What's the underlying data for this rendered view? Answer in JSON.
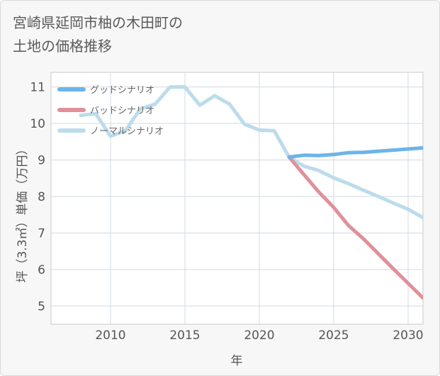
{
  "chart_data": {
    "type": "line",
    "title_lines": [
      "宮崎県延岡市柚の木田町の",
      "土地の価格推移"
    ],
    "xlabel": "年",
    "ylabel": "坪（3.3㎡）単価（万円）",
    "xlim": [
      2006,
      2031
    ],
    "ylim": [
      4.5,
      11.4
    ],
    "xticks": [
      2010,
      2015,
      2020,
      2025,
      2030
    ],
    "yticks": [
      5,
      6,
      7,
      8,
      9,
      10,
      11
    ],
    "legend_position": "top-left",
    "series": [
      {
        "name": "グッドシナリオ",
        "color": "#6cb4ea",
        "x": [
          2022,
          2023,
          2024,
          2025,
          2026,
          2027,
          2028,
          2029,
          2030,
          2031
        ],
        "values": [
          9.08,
          9.13,
          9.12,
          9.15,
          9.2,
          9.21,
          9.24,
          9.27,
          9.3,
          9.33
        ]
      },
      {
        "name": "バッドシナリオ",
        "color": "#e0909a",
        "x": [
          2022,
          2023,
          2024,
          2025,
          2026,
          2027,
          2028,
          2029,
          2030,
          2031
        ],
        "values": [
          9.08,
          8.6,
          8.12,
          7.7,
          7.2,
          6.84,
          6.43,
          6.02,
          5.62,
          5.22
        ]
      },
      {
        "name": "ノーマルシナリオ",
        "color": "#bcdcec",
        "x": [
          2008,
          2009,
          2010,
          2011,
          2012,
          2013,
          2014,
          2015,
          2016,
          2017,
          2018,
          2019,
          2020,
          2021,
          2022,
          2023,
          2024,
          2025,
          2026,
          2027,
          2028,
          2029,
          2030,
          2031
        ],
        "values": [
          10.22,
          10.27,
          9.65,
          9.8,
          10.4,
          10.53,
          11.0,
          11.0,
          10.5,
          10.76,
          10.53,
          9.98,
          9.82,
          9.8,
          9.08,
          8.83,
          8.71,
          8.51,
          8.35,
          8.17,
          8.0,
          7.82,
          7.65,
          7.42
        ]
      }
    ]
  }
}
